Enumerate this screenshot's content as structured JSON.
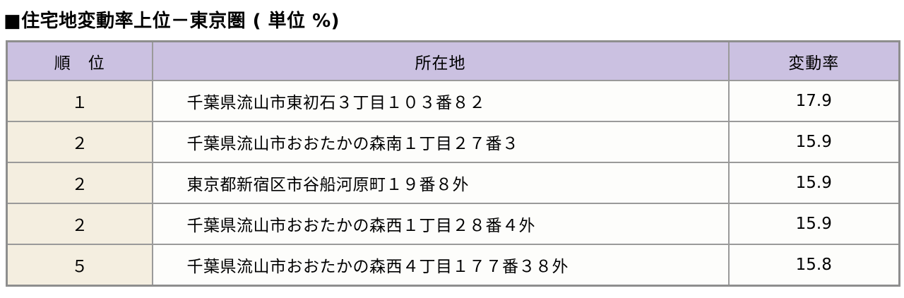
{
  "title": "■住宅地変動率上位－東京圏 ( 単位 %)",
  "colors": {
    "header_bg": "#cbc1e1",
    "rank_bg": "#f4eee0",
    "cell_bg": "#fdfdfb",
    "border": "#9a9a9a",
    "outer_border": "#8e8e8e"
  },
  "table": {
    "headers": [
      "順　位",
      "所在地",
      "変動率"
    ],
    "rows": [
      {
        "rank": "１",
        "location": "千葉県流山市東初石３丁目１０３番８２",
        "rate": "17.9"
      },
      {
        "rank": "２",
        "location": "千葉県流山市おおたかの森南１丁目２７番３",
        "rate": "15.9"
      },
      {
        "rank": "２",
        "location": "東京都新宿区市谷船河原町１９番８外",
        "rate": "15.9"
      },
      {
        "rank": "２",
        "location": "千葉県流山市おおたかの森西１丁目２８番４外",
        "rate": "15.9"
      },
      {
        "rank": "５",
        "location": "千葉県流山市おおたかの森西４丁目１７７番３８外",
        "rate": "15.8"
      }
    ]
  }
}
